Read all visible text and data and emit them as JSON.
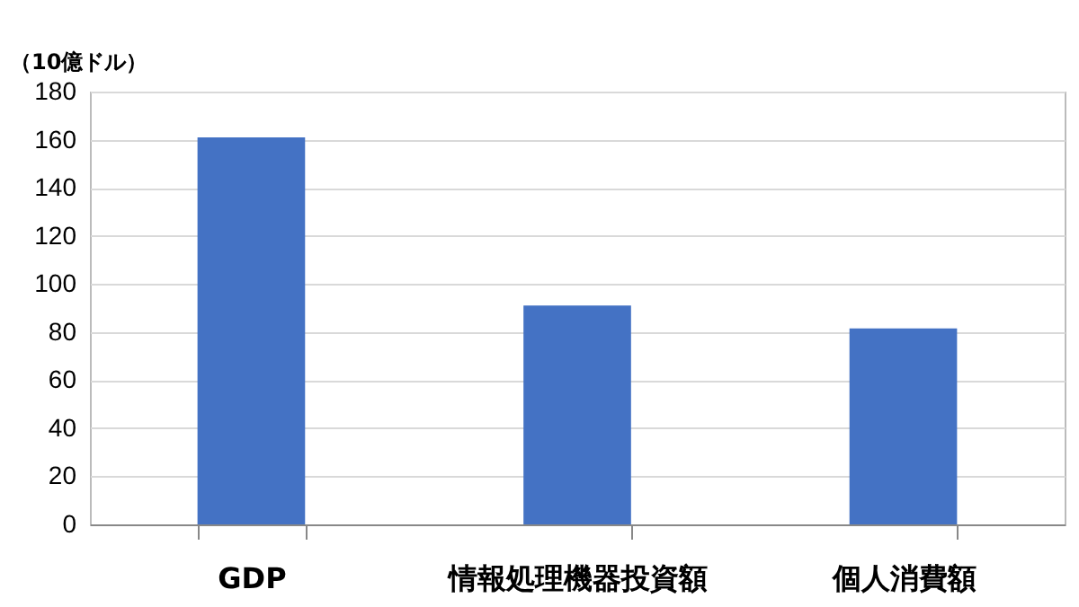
{
  "chart_data": {
    "type": "bar",
    "ylabel": "（10億ドル）",
    "categories": [
      "GDP",
      "情報処理機器投資額",
      "個人消費額"
    ],
    "values": [
      161,
      91,
      81.5
    ],
    "color": "#4472c4",
    "ylim": [
      0,
      180
    ],
    "yticks": [
      0,
      20,
      40,
      60,
      80,
      100,
      120,
      140,
      160,
      180
    ],
    "grid": "y"
  }
}
